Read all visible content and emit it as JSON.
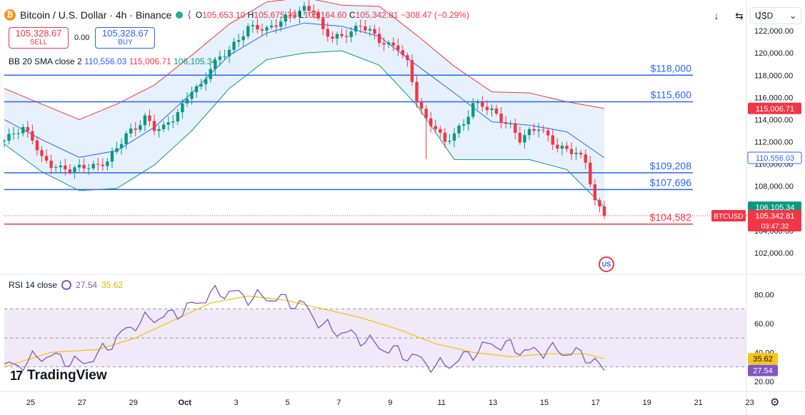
{
  "header": {
    "symbol_title": "Bitcoin / U.S. Dollar · 4h · Binance",
    "ohlc": {
      "o_label": "O",
      "o_value": "105,653.10",
      "h_label": "H",
      "h_value": "105,675.39",
      "l_label": "L",
      "l_value": "105,164.60",
      "c_label": "C",
      "c_value": "105,342.81",
      "change": "−308.47 (−0.29%)"
    }
  },
  "trade": {
    "sell_price": "105,328.67",
    "sell_label": "SELL",
    "spread": "0.00",
    "buy_price": "105,328.67",
    "buy_label": "BUY"
  },
  "indicators": {
    "bb_label": "BB 20 SMA close 2",
    "bb_basis": "110,556.03",
    "bb_upper": "115,006.71",
    "bb_lower": "106,105.34",
    "rsi_label": "RSI 14 close",
    "rsi_value": "27.54",
    "rsi_ma": "35.62"
  },
  "toolbar": {
    "currency": "USD"
  },
  "brand": "TradingView",
  "colors": {
    "up": "#089981",
    "down": "#f23645",
    "bb_basis": "#2962ff",
    "bb_upper": "#f23645",
    "bb_lower": "#089981",
    "bb_fill": "#e3f0fb",
    "hline": "#2962ff",
    "support": "#f23645",
    "rsi": "#7e57c2",
    "rsi_ma": "#f5c518",
    "rsi_band": "#efe9f8"
  },
  "chart_data": [
    {
      "type": "candlestick",
      "title": "Bitcoin / U.S. Dollar · 4h · Binance",
      "ylim": [
        100000,
        124000
      ],
      "y_ticks": [
        "102,000.00",
        "104,000.00",
        "106,000.00",
        "108,000.00",
        "110,000.00",
        "112,000.00",
        "114,000.00",
        "116,000.00",
        "118,000.00",
        "120,000.00",
        "122,000.00"
      ],
      "x_ticks": [
        "25",
        "27",
        "29",
        "Oct",
        "3",
        "5",
        "7",
        "9",
        "11",
        "13",
        "15",
        "17",
        "19",
        "21",
        "23"
      ],
      "horizontal_levels": [
        {
          "label": "$118,000",
          "value": 118000
        },
        {
          "label": "$115,600",
          "value": 115600
        },
        {
          "label": "$109,208",
          "value": 109208
        },
        {
          "label": "$107,696",
          "value": 107696
        },
        {
          "label": "$104,582",
          "value": 104582
        }
      ],
      "price_tags": [
        {
          "value": "115,006.71",
          "y": 115006.71,
          "color": "#f23645"
        },
        {
          "value": "110,556.03",
          "y": 110556.03,
          "color": "#ffffff"
        },
        {
          "value": "106,105.34",
          "y": 106105.34,
          "color": "#089981"
        },
        {
          "value": "105,342.81",
          "y": 105342.81,
          "color": "#f23645",
          "symbol": "BTCUSD",
          "countdown": "03:47:32"
        }
      ],
      "close_path": [
        [
          0,
          112100
        ],
        [
          2,
          112800
        ],
        [
          4,
          113200
        ],
        [
          6,
          112300
        ],
        [
          8,
          110500
        ],
        [
          10,
          109900
        ],
        [
          12,
          109600
        ],
        [
          14,
          109500
        ],
        [
          16,
          109700
        ],
        [
          18,
          109800
        ],
        [
          20,
          109800
        ],
        [
          22,
          110300
        ],
        [
          24,
          111400
        ],
        [
          26,
          112700
        ],
        [
          28,
          113200
        ],
        [
          30,
          114200
        ],
        [
          32,
          113200
        ],
        [
          34,
          113300
        ],
        [
          36,
          114100
        ],
        [
          38,
          115200
        ],
        [
          40,
          116700
        ],
        [
          42,
          117000
        ],
        [
          44,
          118700
        ],
        [
          46,
          119600
        ],
        [
          48,
          120300
        ],
        [
          50,
          121200
        ],
        [
          52,
          122300
        ],
        [
          54,
          122300
        ],
        [
          56,
          122100
        ],
        [
          58,
          122600
        ],
        [
          60,
          123200
        ],
        [
          62,
          123500
        ],
        [
          64,
          124000
        ],
        [
          66,
          123900
        ],
        [
          68,
          122000
        ],
        [
          70,
          121400
        ],
        [
          72,
          121500
        ],
        [
          74,
          121900
        ],
        [
          76,
          122500
        ],
        [
          78,
          122000
        ],
        [
          80,
          121100
        ],
        [
          82,
          120700
        ],
        [
          84,
          120500
        ],
        [
          86,
          119100
        ],
        [
          88,
          115800
        ],
        [
          90,
          113900
        ],
        [
          92,
          113300
        ],
        [
          94,
          111900
        ],
        [
          96,
          112800
        ],
        [
          98,
          113600
        ],
        [
          100,
          115400
        ],
        [
          102,
          115300
        ],
        [
          104,
          114800
        ],
        [
          106,
          114000
        ],
        [
          108,
          113400
        ],
        [
          110,
          112200
        ],
        [
          112,
          112900
        ],
        [
          114,
          113300
        ],
        [
          116,
          112400
        ],
        [
          118,
          111500
        ],
        [
          120,
          111300
        ],
        [
          122,
          111000
        ],
        [
          124,
          110200
        ],
        [
          126,
          106600
        ],
        [
          128,
          105342
        ]
      ],
      "bb_upper": [
        [
          0,
          116800
        ],
        [
          8,
          115400
        ],
        [
          16,
          114000
        ],
        [
          24,
          115400
        ],
        [
          32,
          117100
        ],
        [
          40,
          119800
        ],
        [
          48,
          122600
        ],
        [
          56,
          124600
        ],
        [
          64,
          125000
        ],
        [
          72,
          124300
        ],
        [
          80,
          124200
        ],
        [
          88,
          121600
        ],
        [
          96,
          118800
        ],
        [
          104,
          116500
        ],
        [
          112,
          116400
        ],
        [
          120,
          115600
        ],
        [
          128,
          115006.71
        ]
      ],
      "bb_basis": [
        [
          0,
          114000
        ],
        [
          8,
          112200
        ],
        [
          16,
          110600
        ],
        [
          24,
          111200
        ],
        [
          32,
          113300
        ],
        [
          40,
          116400
        ],
        [
          48,
          119800
        ],
        [
          56,
          121800
        ],
        [
          64,
          122700
        ],
        [
          72,
          122400
        ],
        [
          80,
          121500
        ],
        [
          88,
          118900
        ],
        [
          96,
          116400
        ],
        [
          104,
          113800
        ],
        [
          112,
          113500
        ],
        [
          120,
          112900
        ],
        [
          128,
          110556.03
        ]
      ],
      "bb_lower": [
        [
          0,
          111800
        ],
        [
          8,
          109300
        ],
        [
          16,
          107600
        ],
        [
          24,
          107800
        ],
        [
          32,
          109900
        ],
        [
          40,
          113000
        ],
        [
          48,
          116800
        ],
        [
          56,
          119400
        ],
        [
          64,
          120000
        ],
        [
          72,
          120200
        ],
        [
          80,
          118900
        ],
        [
          88,
          115300
        ],
        [
          96,
          110400
        ],
        [
          104,
          110400
        ],
        [
          112,
          110400
        ],
        [
          120,
          109500
        ],
        [
          128,
          106105.34
        ]
      ]
    },
    {
      "type": "line",
      "title": "RSI 14 close",
      "ylim": [
        15,
        90
      ],
      "y_ticks": [
        "20.00",
        "40.00",
        "60.00",
        "80.00"
      ],
      "band": [
        30,
        70
      ],
      "levels": [
        30,
        50,
        70
      ],
      "series": [
        {
          "name": "RSI",
          "points": [
            [
              0,
              30
            ],
            [
              4,
              32
            ],
            [
              8,
              38
            ],
            [
              12,
              36
            ],
            [
              16,
              32
            ],
            [
              20,
              38
            ],
            [
              24,
              50
            ],
            [
              28,
              60
            ],
            [
              32,
              64
            ],
            [
              36,
              66
            ],
            [
              40,
              72
            ],
            [
              44,
              80
            ],
            [
              48,
              82
            ],
            [
              52,
              78
            ],
            [
              56,
              78
            ],
            [
              60,
              76
            ],
            [
              64,
              72
            ],
            [
              68,
              58
            ],
            [
              72,
              54
            ],
            [
              76,
              50
            ],
            [
              80,
              44
            ],
            [
              84,
              40
            ],
            [
              88,
              36
            ],
            [
              92,
              30
            ],
            [
              96,
              33
            ],
            [
              100,
              40
            ],
            [
              104,
              46
            ],
            [
              108,
              44
            ],
            [
              112,
              40
            ],
            [
              116,
              42
            ],
            [
              120,
              40
            ],
            [
              124,
              38
            ],
            [
              128,
              27.54
            ]
          ]
        },
        {
          "name": "RSI-based MA",
          "points": [
            [
              0,
              30
            ],
            [
              10,
              40
            ],
            [
              20,
              42
            ],
            [
              28,
              50
            ],
            [
              36,
              62
            ],
            [
              44,
              74
            ],
            [
              52,
              79
            ],
            [
              60,
              76
            ],
            [
              68,
              70
            ],
            [
              76,
              64
            ],
            [
              84,
              56
            ],
            [
              92,
              46
            ],
            [
              100,
              40
            ],
            [
              108,
              37
            ],
            [
              116,
              39
            ],
            [
              124,
              39
            ],
            [
              128,
              35.62
            ]
          ]
        }
      ]
    }
  ]
}
